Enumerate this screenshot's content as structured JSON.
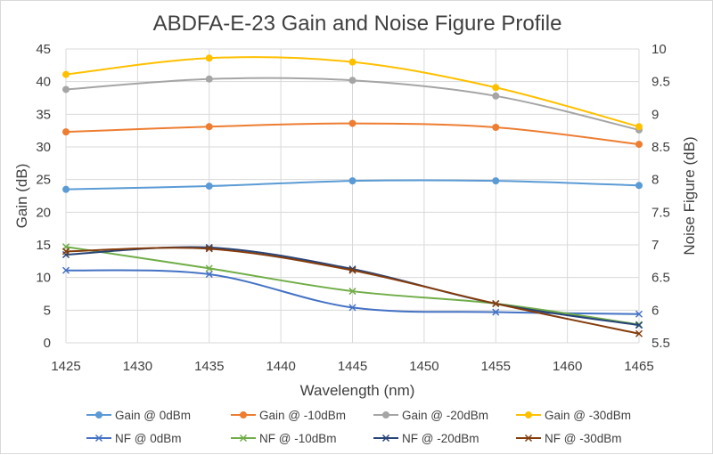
{
  "chart_data": {
    "type": "line",
    "title": "ABDFA-E-23 Gain and Noise Figure Profile",
    "xlabel": "Wavelength (nm)",
    "ylabel": "Gain (dB)",
    "y2label": "Noise Figure (dB)",
    "x": [
      1425,
      1435,
      1445,
      1455,
      1465
    ],
    "xlim": [
      1425,
      1465
    ],
    "xticks": [
      1425,
      1430,
      1435,
      1440,
      1445,
      1450,
      1455,
      1460,
      1465
    ],
    "ylim": [
      0,
      45
    ],
    "yticks": [
      0,
      5,
      10,
      15,
      20,
      25,
      30,
      35,
      40,
      45
    ],
    "y2lim": [
      5.5,
      10
    ],
    "y2ticks": [
      5.5,
      6,
      6.5,
      7,
      7.5,
      8,
      8.5,
      9,
      9.5,
      10
    ],
    "grid": true,
    "legend_position": "bottom",
    "series": [
      {
        "name": "Gain @ 0dBm",
        "axis": "left",
        "marker": "circle",
        "color": "#5b9bd5",
        "values": [
          23.5,
          24.0,
          24.8,
          24.8,
          24.1
        ]
      },
      {
        "name": "Gain @ -10dBm",
        "axis": "left",
        "marker": "circle",
        "color": "#ed7d31",
        "values": [
          32.3,
          33.1,
          33.6,
          33.0,
          30.4
        ]
      },
      {
        "name": "Gain @ -20dBm",
        "axis": "left",
        "marker": "circle",
        "color": "#a5a5a5",
        "values": [
          38.8,
          40.4,
          40.2,
          37.8,
          32.6
        ]
      },
      {
        "name": "Gain @ -30dBm",
        "axis": "left",
        "marker": "circle",
        "color": "#ffc000",
        "values": [
          41.1,
          43.6,
          43.0,
          39.1,
          33.1
        ]
      },
      {
        "name": "NF @ 0dBm",
        "axis": "right",
        "marker": "x",
        "color": "#4472c4",
        "values": [
          6.61,
          6.55,
          6.04,
          5.97,
          5.94
        ]
      },
      {
        "name": "NF @ -10dBm",
        "axis": "right",
        "marker": "x",
        "color": "#70ad47",
        "values": [
          6.97,
          6.64,
          6.29,
          6.1,
          5.78
        ]
      },
      {
        "name": "NF @ -20dBm",
        "axis": "right",
        "marker": "x",
        "color": "#264478",
        "values": [
          6.85,
          6.96,
          6.63,
          6.1,
          5.77
        ]
      },
      {
        "name": "NF @ -30dBm",
        "axis": "right",
        "marker": "x",
        "color": "#843c0c",
        "values": [
          6.9,
          6.94,
          6.61,
          6.1,
          5.64
        ]
      }
    ]
  }
}
